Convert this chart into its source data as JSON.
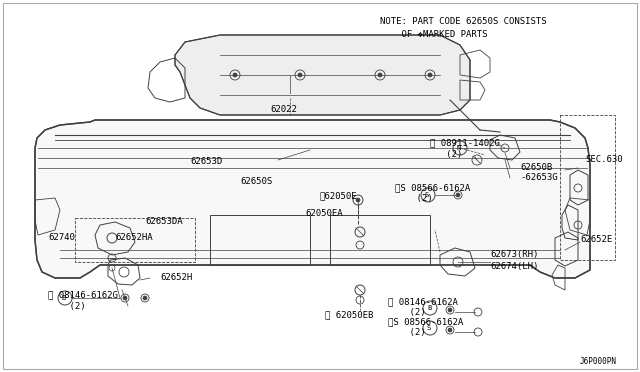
{
  "bg_color": "#ffffff",
  "line_color": "#404040",
  "text_color": "#000000",
  "note_line1": "NOTE: PART CODE 62650S CONSISTS",
  "note_line2": "    OF ❖MARKED PARTS",
  "fig_id": "J6P000PN",
  "figsize": [
    6.4,
    3.72
  ],
  "dpi": 100,
  "border_color": "#888888"
}
